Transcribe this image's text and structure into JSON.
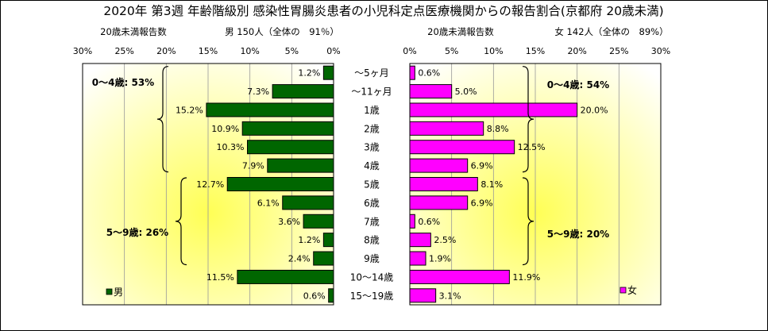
{
  "title": "2020年 第3週 年齢階級別 感染性胃腸炎患者の小児科定点医療機関からの報告割合(京都府 20歳未満)",
  "chart_data": [
    {
      "type": "bar",
      "orientation": "horizontal",
      "direction": "right-to-left",
      "header_left": "20歳未満報告数",
      "header_right": "男  150人（全体の　91％）",
      "x_ticks": [
        "30%",
        "25%",
        "20%",
        "15%",
        "10%",
        "5%",
        "0%"
      ],
      "xlim": [
        0,
        30
      ],
      "categories": [
        "～5ヶ月",
        "～11ヶ月",
        "1歳",
        "2歳",
        "3歳",
        "4歳",
        "5歳",
        "6歳",
        "7歳",
        "8歳",
        "9歳",
        "10～14歳",
        "15～19歳"
      ],
      "series": [
        {
          "name": "男",
          "color": "#006600",
          "values": [
            1.2,
            7.3,
            15.2,
            10.9,
            10.3,
            7.9,
            12.7,
            6.1,
            3.6,
            1.2,
            2.4,
            11.5,
            0.6
          ],
          "labels": [
            "1.2%",
            "7.3%",
            "15.2%",
            "10.9%",
            "10.3%",
            "7.9%",
            "12.7%",
            "6.1%",
            "3.6%",
            "1.2%",
            "2.4%",
            "11.5%",
            "0.6%"
          ]
        }
      ],
      "brackets": [
        {
          "label": "0～4歳: 53%",
          "from": 0,
          "to": 5
        },
        {
          "label": "5～9歳: 26%",
          "from": 6,
          "to": 10
        }
      ]
    },
    {
      "type": "bar",
      "orientation": "horizontal",
      "direction": "left-to-right",
      "header_left": "20歳未満報告数",
      "header_right": "女  142人（全体の　89%）",
      "x_ticks": [
        "0%",
        "5%",
        "10%",
        "15%",
        "20%",
        "25%",
        "30%"
      ],
      "xlim": [
        0,
        30
      ],
      "categories": [
        "～5ヶ月",
        "～11ヶ月",
        "1歳",
        "2歳",
        "3歳",
        "4歳",
        "5歳",
        "6歳",
        "7歳",
        "8歳",
        "9歳",
        "10～14歳",
        "15～19歳"
      ],
      "series": [
        {
          "name": "女",
          "color": "#FF00FF",
          "values": [
            0.6,
            5.0,
            20.0,
            8.8,
            12.5,
            6.9,
            8.1,
            6.9,
            0.6,
            2.5,
            1.9,
            11.9,
            3.1
          ],
          "labels": [
            "0.6%",
            "5.0%",
            "20.0%",
            "8.8%",
            "12.5%",
            "6.9%",
            "8.1%",
            "6.9%",
            "0.6%",
            "2.5%",
            "1.9%",
            "11.9%",
            "3.1%"
          ]
        }
      ],
      "brackets": [
        {
          "label": "0～4歳: 54%",
          "from": 0,
          "to": 5
        },
        {
          "label": "5～9歳: 20%",
          "from": 6,
          "to": 10
        }
      ]
    }
  ]
}
